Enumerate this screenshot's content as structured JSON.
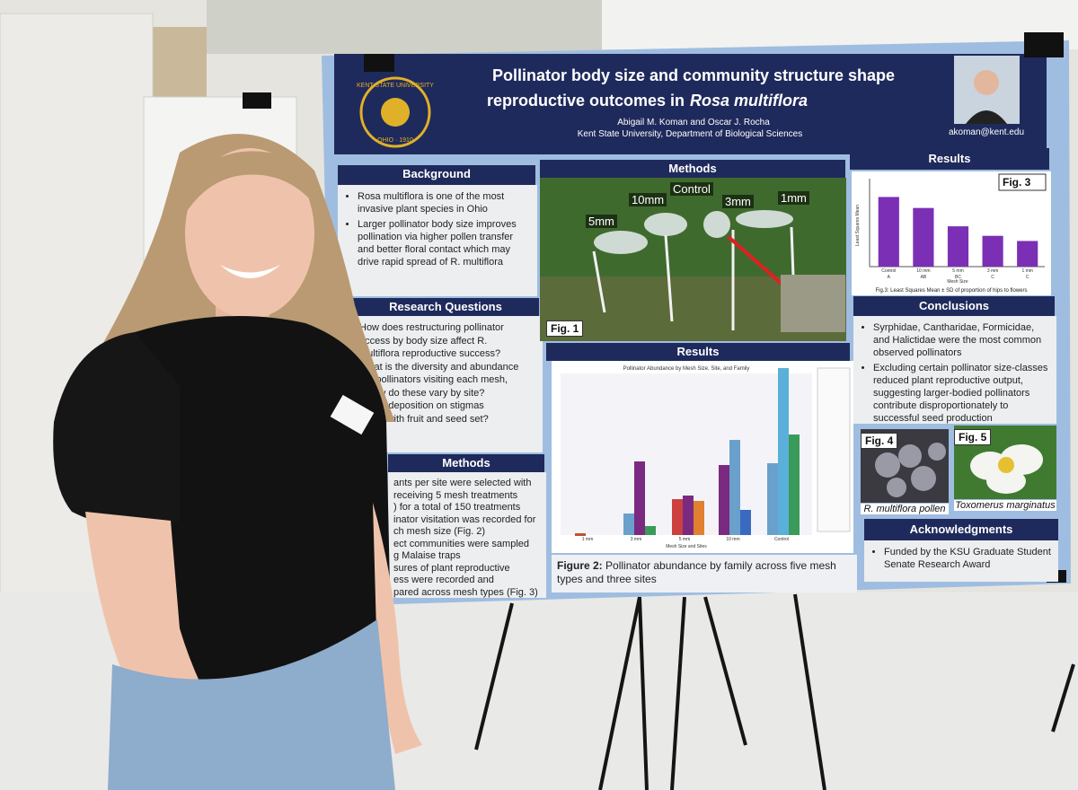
{
  "header": {
    "logo_top": "KENT STATE UNIVERSITY",
    "logo_bottom": "OHIO · 1910",
    "title_line1": "Pollinator body size and community structure shape",
    "title_line2": "reproductive outcomes in",
    "title_species": "Rosa multiflora",
    "authors": "Abigail M. Koman and Oscar J. Rocha",
    "affiliation": "Kent State University, Department of Biological Sciences",
    "email": "akoman@kent.edu"
  },
  "background": {
    "heading": "Background",
    "items": [
      "Rosa multiflora is one of the most invasive plant species in Ohio",
      "Larger pollinator body size improves pollination via higher pollen transfer and better floral contact which may drive rapid spread of R. multiflora"
    ]
  },
  "research_questions": {
    "heading": "Research Questions",
    "lines": [
      "How does restructuring pollinator",
      "access by body size affect R.",
      "multiflora reproductive success?",
      "What is the diversity and abundance",
      "the pollinators visiting each mesh,",
      "d how do these vary by site?",
      "pollen deposition on stigmas",
      "relate with fruit and seed set?"
    ]
  },
  "methods_text": {
    "heading": "Methods",
    "lines": [
      "ants per site were selected with",
      "receiving 5 mesh treatments",
      ") for a total of 150 treatments",
      "inator visitation was recorded for",
      "ch mesh size (Fig. 2)",
      "ect communities were sampled",
      "g Malaise traps",
      "sures of plant reproductive",
      "ess were recorded and",
      "pared across mesh types (Fig. 3)"
    ]
  },
  "methods_photo": {
    "heading": "Methods",
    "fig_label": "Fig. 1",
    "labels": [
      "5mm",
      "10mm",
      "Control",
      "3mm",
      "1mm"
    ]
  },
  "results_fig2": {
    "heading": "Results",
    "chart_title": "Pollinator Abundance by Mesh Size, Site, and Family",
    "x_label": "Mesh Size and Sites",
    "categories": [
      "1 mm",
      "3 mm",
      "5 mm",
      "10 mm",
      "Control"
    ],
    "caption_label": "Figure 2:",
    "caption": "Pollinator abundance by family across five mesh types and three sites"
  },
  "results_fig3": {
    "heading": "Results",
    "fig_label": "Fig. 3",
    "y_label": "Least Squares Mean",
    "x_label": "Mesh Size",
    "categories": [
      "Control",
      "10 mm",
      "5 mm",
      "3 mm",
      "1 mm"
    ],
    "letters": [
      "A",
      "AB",
      "BC",
      "C",
      "C"
    ],
    "values": [
      0.95,
      0.8,
      0.55,
      0.42,
      0.35
    ],
    "ylim": [
      0,
      1.2
    ],
    "color": "#7b2fb5",
    "caption": "Fig.3: Least Squares Mean ± SD of proportion of hips to flowers"
  },
  "conclusions": {
    "heading": "Conclusions",
    "items": [
      "Syrphidae, Cantharidae, Formicidae, and Halictidae were the most common observed pollinators",
      "Excluding certain pollinator size-classes reduced plant reproductive output, suggesting larger-bodied pollinators contribute disproportionately to successful seed production"
    ]
  },
  "figures": {
    "fig4_label": "Fig. 4",
    "fig4_caption": "R. multiflora pollen",
    "fig5_label": "Fig. 5",
    "fig5_caption": "Toxomerus marginatus"
  },
  "acknowledgments": {
    "heading": "Acknowledgments",
    "text": "Funded by the KSU Graduate Student Senate Research Award"
  }
}
